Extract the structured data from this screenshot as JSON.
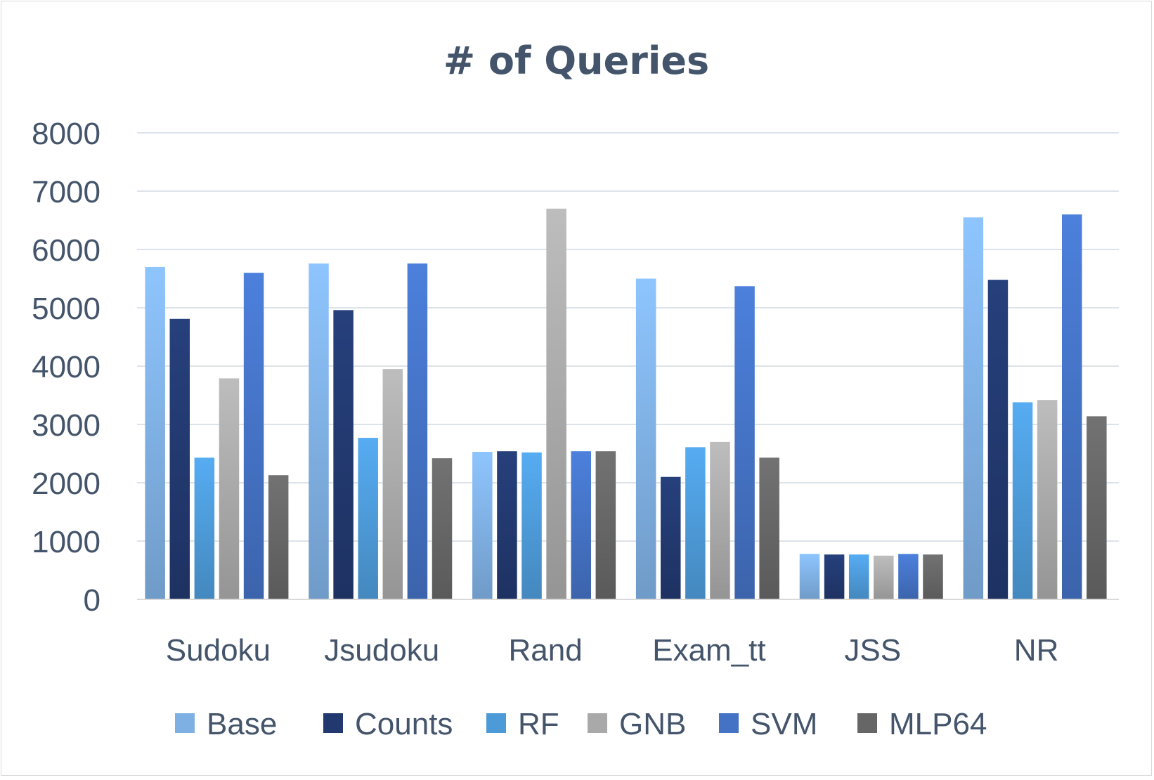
{
  "chart_data": {
    "type": "bar",
    "title": "# of Queries",
    "xlabel": "",
    "ylabel": "",
    "ylim": [
      0,
      8000
    ],
    "yticks": [
      "0",
      "1000",
      "2000",
      "3000",
      "4000",
      "5000",
      "6000",
      "7000",
      "8000"
    ],
    "grid": true,
    "legend_position": "bottom",
    "categories": [
      "Sudoku",
      "Jsudoku",
      "Rand",
      "Exam_tt",
      "JSS",
      "NR"
    ],
    "series": [
      {
        "name": "Base",
        "color": "#7fb0e3",
        "values": [
          5700,
          5760,
          2530,
          5500,
          780,
          6550
        ]
      },
      {
        "name": "Counts",
        "color": "#22396f",
        "values": [
          4810,
          4960,
          2540,
          2100,
          770,
          5480
        ]
      },
      {
        "name": "RF",
        "color": "#4d9ad8",
        "values": [
          2430,
          2770,
          2520,
          2610,
          770,
          3380
        ]
      },
      {
        "name": "GNB",
        "color": "#a9a9a9",
        "values": [
          3790,
          3950,
          6700,
          2700,
          750,
          3420
        ]
      },
      {
        "name": "SVM",
        "color": "#4472c4",
        "values": [
          5600,
          5760,
          2540,
          5370,
          780,
          6600
        ]
      },
      {
        "name": "MLP64",
        "color": "#666666",
        "values": [
          2130,
          2420,
          2540,
          2430,
          770,
          3140
        ]
      }
    ]
  }
}
